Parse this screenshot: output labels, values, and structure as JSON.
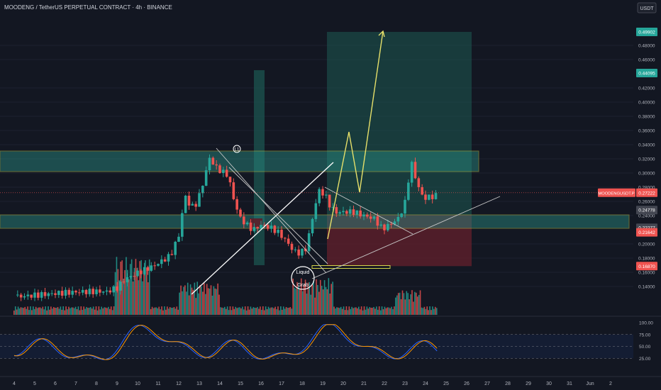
{
  "header": {
    "title": "MOODENG / TetherUS PERPETUAL CONTRACT · 4h · BINANCE"
  },
  "currency": "USDT",
  "colors": {
    "background": "#131722",
    "up": "#26a69a",
    "down": "#ef5350",
    "zone_border": "#d4d44a",
    "zone_fill": "#2a8f84",
    "target_fill": "#1d5a52",
    "stop_fill": "#5a1f2a",
    "projection": "#e6e06a",
    "stoch_k": "#2962ff",
    "stoch_d": "#ff9800",
    "text": "#b2b5be"
  },
  "annotations": {
    "liquid_grab_1": "Liquid",
    "liquid_grab_2": "Grab",
    "marker": "L1"
  },
  "price_badges": [
    {
      "price": "0.49902",
      "color": "#26a69a"
    },
    {
      "price": "0.44095",
      "color": "#26a69a"
    },
    {
      "price": "0.27222",
      "color": "#ef5350"
    },
    {
      "price": "0.24778",
      "color": "#434651"
    },
    {
      "price": "0.22277",
      "color": "#434651"
    },
    {
      "price": "0.21642",
      "color": "#ef5350"
    },
    {
      "price": "0.16870",
      "color": "#ef5350"
    }
  ],
  "symbol_badge": "MOODENGUSDT.P",
  "chart_data": {
    "type": "candlestick",
    "title": "MOODENG / TetherUS PERPETUAL CONTRACT · 4h · BINANCE",
    "ylim": [
      0.12,
      0.505
    ],
    "y_ticks": [
      "0.48000",
      "0.46000",
      "0.42000",
      "0.40000",
      "0.38000",
      "0.36000",
      "0.34000",
      "0.32000",
      "0.30000",
      "0.28000",
      "0.26000",
      "0.24000",
      "0.20000",
      "0.18000",
      "0.16000",
      "0.14000"
    ],
    "x_ticks": [
      "4",
      "5",
      "6",
      "7",
      "8",
      "9",
      "10",
      "11",
      "12",
      "13",
      "14",
      "15",
      "16",
      "17",
      "18",
      "19",
      "20",
      "21",
      "22",
      "23",
      "24",
      "25",
      "26",
      "27",
      "28",
      "29",
      "30",
      "31",
      "Jun",
      "2"
    ],
    "day_range": [
      4,
      24.6
    ],
    "ohlc_anchors": [
      [
        4.0,
        0.128
      ],
      [
        8.5,
        0.129
      ],
      [
        9.0,
        0.135
      ],
      [
        9.4,
        0.148
      ],
      [
        10.0,
        0.158
      ],
      [
        10.8,
        0.17
      ],
      [
        11.6,
        0.186
      ],
      [
        12.0,
        0.215
      ],
      [
        12.3,
        0.272
      ],
      [
        12.6,
        0.255
      ],
      [
        12.9,
        0.262
      ],
      [
        13.2,
        0.292
      ],
      [
        13.5,
        0.325
      ],
      [
        13.8,
        0.312
      ],
      [
        14.1,
        0.305
      ],
      [
        14.4,
        0.3
      ],
      [
        14.7,
        0.262
      ],
      [
        15.0,
        0.238
      ],
      [
        15.3,
        0.228
      ],
      [
        15.6,
        0.22
      ],
      [
        16.0,
        0.226
      ],
      [
        16.4,
        0.222
      ],
      [
        16.8,
        0.215
      ],
      [
        17.2,
        0.202
      ],
      [
        17.6,
        0.186
      ],
      [
        17.9,
        0.183
      ],
      [
        18.2,
        0.19
      ],
      [
        18.5,
        0.232
      ],
      [
        18.8,
        0.272
      ],
      [
        19.1,
        0.266
      ],
      [
        19.4,
        0.248
      ],
      [
        19.7,
        0.241
      ],
      [
        20.0,
        0.243
      ],
      [
        20.5,
        0.244
      ],
      [
        21.0,
        0.24
      ],
      [
        21.5,
        0.237
      ],
      [
        21.9,
        0.223
      ],
      [
        22.3,
        0.231
      ],
      [
        22.7,
        0.24
      ],
      [
        23.0,
        0.262
      ],
      [
        23.3,
        0.32
      ],
      [
        23.6,
        0.288
      ],
      [
        23.9,
        0.268
      ],
      [
        24.2,
        0.27
      ],
      [
        24.6,
        0.272
      ]
    ],
    "volume_note": "volume histogram at bottom of price pane",
    "zones": [
      {
        "name": "resistance",
        "from": 0.302,
        "to": 0.331
      },
      {
        "name": "support",
        "from": 0.222,
        "to": 0.241
      }
    ],
    "position": {
      "entry": 0.2409,
      "target": 0.49902,
      "stop": 0.1687
    },
    "stoch_rsi": {
      "levels": [
        75,
        50,
        25
      ],
      "range": [
        0,
        100
      ],
      "axis_label_top": "100.00"
    }
  }
}
